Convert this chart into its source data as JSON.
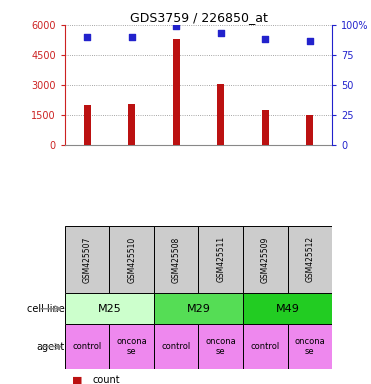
{
  "title": "GDS3759 / 226850_at",
  "samples": [
    "GSM425507",
    "GSM425510",
    "GSM425508",
    "GSM425511",
    "GSM425509",
    "GSM425512"
  ],
  "counts": [
    2000,
    2050,
    5300,
    3050,
    1750,
    1500
  ],
  "percentile_ranks": [
    90,
    90,
    99,
    93,
    88,
    87
  ],
  "ylim_left": [
    0,
    6000
  ],
  "ylim_right": [
    0,
    100
  ],
  "yticks_left": [
    0,
    1500,
    3000,
    4500,
    6000
  ],
  "yticks_right": [
    0,
    25,
    50,
    75,
    100
  ],
  "cell_lines": [
    {
      "label": "M25",
      "span": [
        0,
        2
      ],
      "color": "#ccffcc"
    },
    {
      "label": "M29",
      "span": [
        2,
        4
      ],
      "color": "#55dd55"
    },
    {
      "label": "M49",
      "span": [
        4,
        6
      ],
      "color": "#22cc22"
    }
  ],
  "agents": [
    {
      "label": "control",
      "span": [
        0,
        1
      ],
      "color": "#ee88ee"
    },
    {
      "label": "oncona\nse",
      "span": [
        1,
        2
      ],
      "color": "#ee88ee"
    },
    {
      "label": "control",
      "span": [
        2,
        3
      ],
      "color": "#ee88ee"
    },
    {
      "label": "oncona\nse",
      "span": [
        3,
        4
      ],
      "color": "#ee88ee"
    },
    {
      "label": "control",
      "span": [
        4,
        5
      ],
      "color": "#ee88ee"
    },
    {
      "label": "oncona\nse",
      "span": [
        5,
        6
      ],
      "color": "#ee88ee"
    }
  ],
  "bar_color": "#bb1111",
  "scatter_color": "#2222cc",
  "left_axis_color": "#cc2222",
  "right_axis_color": "#2222cc",
  "grid_color": "#888888",
  "sample_box_color": "#cccccc",
  "background_color": "#ffffff",
  "bar_width": 0.15
}
